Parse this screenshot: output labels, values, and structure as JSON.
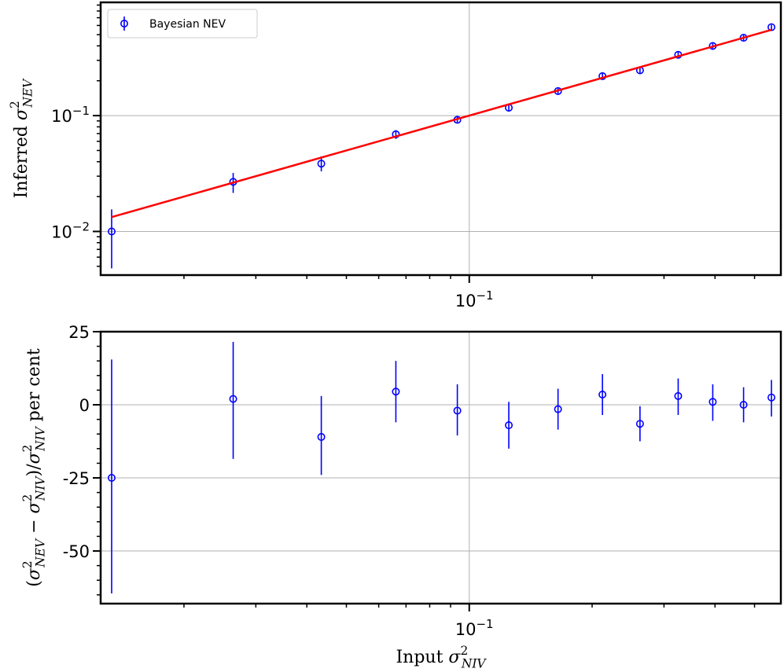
{
  "chart_data": [
    {
      "type": "scatter",
      "xscale": "log",
      "yscale": "log",
      "xlim": [
        0.0125,
        0.58
      ],
      "ylim": [
        0.0042,
        0.95
      ],
      "grid": true,
      "legend": {
        "placement": "top-left",
        "entries": [
          "Bayesian NEV"
        ]
      },
      "ylabel": {
        "prefix": "Inferred ",
        "main": "σ",
        "sup": "2",
        "sub": "NEV",
        "suffix": ""
      },
      "yticks": [
        {
          "value": 0.01,
          "base": "10",
          "exp": "−2"
        },
        {
          "value": 0.1,
          "base": "10",
          "exp": "−1"
        }
      ],
      "xticks": [
        {
          "value": 0.1,
          "base": "10",
          "exp": "−1"
        }
      ],
      "series": [
        {
          "name": "Bayesian NEV",
          "color": "#0000ff",
          "points": [
            {
              "x": 0.0133,
              "y": 0.01,
              "ylo": 0.0048,
              "yhi": 0.0155
            },
            {
              "x": 0.0264,
              "y": 0.0268,
              "ylo": 0.0215,
              "yhi": 0.032
            },
            {
              "x": 0.0434,
              "y": 0.0385,
              "ylo": 0.033,
              "yhi": 0.0445
            },
            {
              "x": 0.0661,
              "y": 0.069,
              "ylo": 0.063,
              "yhi": 0.075
            },
            {
              "x": 0.0935,
              "y": 0.092,
              "ylo": 0.086,
              "yhi": 0.098
            },
            {
              "x": 0.125,
              "y": 0.117,
              "ylo": 0.108,
              "yhi": 0.126
            },
            {
              "x": 0.165,
              "y": 0.163,
              "ylo": 0.153,
              "yhi": 0.173
            },
            {
              "x": 0.212,
              "y": 0.219,
              "ylo": 0.204,
              "yhi": 0.234
            },
            {
              "x": 0.262,
              "y": 0.246,
              "ylo": 0.229,
              "yhi": 0.263
            },
            {
              "x": 0.325,
              "y": 0.335,
              "ylo": 0.315,
              "yhi": 0.355
            },
            {
              "x": 0.395,
              "y": 0.399,
              "ylo": 0.377,
              "yhi": 0.421
            },
            {
              "x": 0.47,
              "y": 0.47,
              "ylo": 0.445,
              "yhi": 0.495
            },
            {
              "x": 0.55,
              "y": 0.58,
              "ylo": 0.55,
              "yhi": 0.61
            }
          ]
        },
        {
          "name": "",
          "type": "line",
          "color": "#ff0000",
          "x": [
            0.0133,
            0.55
          ],
          "y": [
            0.0133,
            0.55
          ]
        }
      ]
    },
    {
      "type": "scatter",
      "xscale": "log",
      "yscale": "linear",
      "xlim": [
        0.0125,
        0.58
      ],
      "ylim": [
        -68,
        25
      ],
      "grid": true,
      "ylabel": {
        "prefix": "(",
        "main": "σ",
        "sup": "2",
        "sub": "NEV",
        "middle": " − ",
        "main2": "σ",
        "sup2": "2",
        "sub2": "NIV",
        "after": ")/",
        "main3": "σ",
        "sup3": "2",
        "sub3": "NIV",
        "suffix": " per cent"
      },
      "xlabel": {
        "prefix": "Input ",
        "main": "σ",
        "sup": "2",
        "sub": "NIV"
      },
      "yticks": [
        {
          "value": 25,
          "label": "25"
        },
        {
          "value": 0,
          "label": "0"
        },
        {
          "value": -25,
          "label": "-25"
        },
        {
          "value": -50,
          "label": "-50"
        }
      ],
      "xticks": [
        {
          "value": 0.1,
          "base": "10",
          "exp": "−1"
        }
      ],
      "series": [
        {
          "name": "",
          "color": "#0000ff",
          "points": [
            {
              "x": 0.0133,
              "y": -25.0,
              "ylo": -64.5,
              "yhi": 15.5
            },
            {
              "x": 0.0264,
              "y": 2.0,
              "ylo": -18.5,
              "yhi": 21.5
            },
            {
              "x": 0.0434,
              "y": -11.0,
              "ylo": -24.0,
              "yhi": 3.0
            },
            {
              "x": 0.0661,
              "y": 4.5,
              "ylo": -6.0,
              "yhi": 15.0
            },
            {
              "x": 0.0935,
              "y": -2.0,
              "ylo": -10.5,
              "yhi": 7.0
            },
            {
              "x": 0.125,
              "y": -7.0,
              "ylo": -15.0,
              "yhi": 1.0
            },
            {
              "x": 0.165,
              "y": -1.5,
              "ylo": -8.5,
              "yhi": 5.5
            },
            {
              "x": 0.212,
              "y": 3.5,
              "ylo": -3.5,
              "yhi": 10.5
            },
            {
              "x": 0.262,
              "y": -6.5,
              "ylo": -12.5,
              "yhi": -0.5
            },
            {
              "x": 0.325,
              "y": 3.0,
              "ylo": -3.5,
              "yhi": 9.0
            },
            {
              "x": 0.395,
              "y": 1.0,
              "ylo": -5.5,
              "yhi": 7.0
            },
            {
              "x": 0.47,
              "y": 0.0,
              "ylo": -6.0,
              "yhi": 6.0
            },
            {
              "x": 0.55,
              "y": 2.5,
              "ylo": -4.0,
              "yhi": 8.5
            }
          ]
        }
      ]
    }
  ]
}
